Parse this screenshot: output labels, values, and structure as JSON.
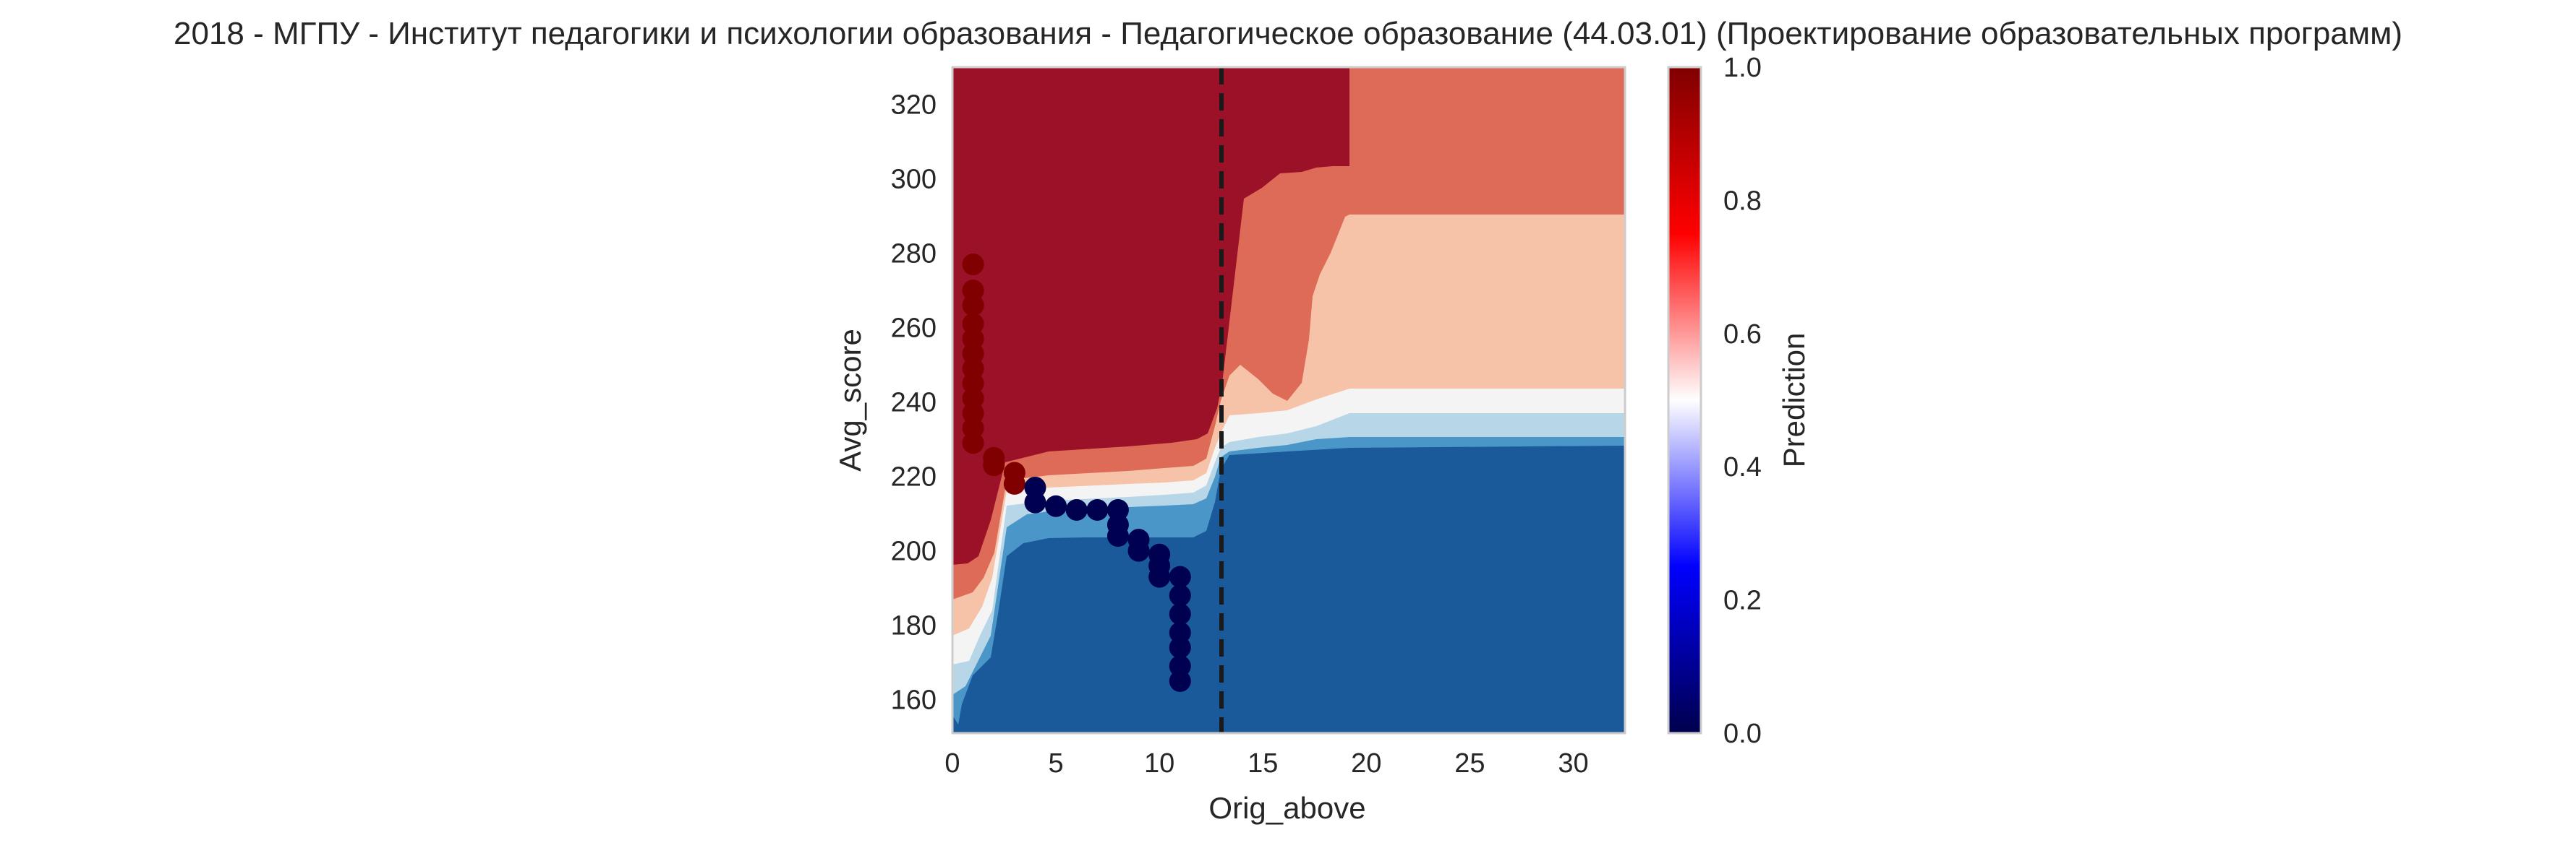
{
  "chart_data": {
    "type": "contour",
    "title": "2018 - МГПУ - Институт педагогики и психологии образования - Педагогическое образование (44.03.01) (Проектирование образовательных программ)",
    "xlabel": "Orig_above",
    "ylabel": "Avg_score",
    "xlim": [
      0,
      32.5
    ],
    "ylim": [
      151,
      330
    ],
    "x_ticks": [
      "0",
      "5",
      "10",
      "15",
      "20",
      "25",
      "30"
    ],
    "y_ticks": [
      "160",
      "180",
      "200",
      "220",
      "240",
      "260",
      "280",
      "300",
      "320"
    ],
    "grid": false,
    "colorbar": {
      "label": "Prediction",
      "range": [
        0,
        1
      ],
      "ticks": [
        "0.0",
        "0.2",
        "0.4",
        "0.6",
        "0.8",
        "1.0"
      ],
      "colormap": "seismic"
    },
    "threshold_line": {
      "x": 13,
      "style": "dashed",
      "color": "#1a1a1a"
    },
    "contour_levels": [
      {
        "level": 0.1,
        "color": "#1b5a9a"
      },
      {
        "level": 0.2,
        "color": "#4b96c8"
      },
      {
        "level": 0.3,
        "color": "#b7d7e8"
      },
      {
        "level": 0.4,
        "color": "#f4f4f4"
      },
      {
        "level": 0.6,
        "color": "#f7c3a8"
      },
      {
        "level": 0.7,
        "color": "#dd6b57"
      },
      {
        "level": 0.9,
        "color": "#9b1127"
      }
    ],
    "series": [
      {
        "color": "#800000",
        "points": [
          [
            1,
            277
          ],
          [
            1,
            270
          ],
          [
            1,
            266
          ],
          [
            1,
            261
          ],
          [
            1,
            257
          ],
          [
            1,
            253
          ],
          [
            1,
            249
          ],
          [
            1,
            245
          ],
          [
            1,
            241
          ],
          [
            1,
            237
          ],
          [
            1,
            233
          ],
          [
            1,
            229
          ],
          [
            2,
            225
          ],
          [
            2,
            223
          ],
          [
            3,
            221
          ],
          [
            3,
            218
          ]
        ]
      },
      {
        "color": "#000050",
        "points": [
          [
            4,
            217
          ],
          [
            4,
            213
          ],
          [
            5,
            212
          ],
          [
            6,
            211
          ],
          [
            7,
            211
          ],
          [
            8,
            211
          ],
          [
            8,
            207
          ],
          [
            8,
            204
          ],
          [
            9,
            203
          ],
          [
            9,
            200
          ],
          [
            10,
            199
          ],
          [
            10,
            196
          ],
          [
            10,
            193
          ],
          [
            11,
            193
          ],
          [
            11,
            188
          ],
          [
            11,
            183
          ],
          [
            11,
            178
          ],
          [
            11,
            174
          ],
          [
            11,
            169
          ],
          [
            11,
            165
          ]
        ]
      }
    ]
  }
}
